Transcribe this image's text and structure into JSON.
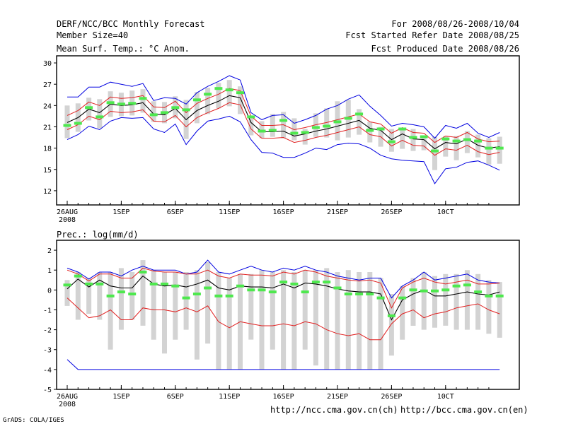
{
  "header": {
    "left": [
      "DERF/NCC/BCC Monthly Forecast",
      "Member Size=40",
      "Mean Surf. Temp.: °C Anom."
    ],
    "right": [
      "For 2008/08/26-2008/10/04",
      "Fcst Started Refer Date 2008/08/25",
      "Fcst Produced Date 2008/08/26"
    ]
  },
  "footer": {
    "url_left": "http://ncc.cma.gov.cn(ch)",
    "url_right": "http://bcc.cma.gov.cn(en)",
    "credit": "GrADS: COLA/IGES"
  },
  "colors": {
    "box": "#d3d3d3",
    "median": "#4ee84e",
    "band": "#e02020",
    "envelope": "#0000e0",
    "mean": "#000000",
    "frame": "#000000"
  },
  "chart_data": [
    {
      "type": "box-band",
      "title": "Mean Surf. Temp.: °C Anom.",
      "days": 40,
      "x_tick_labels": [
        "26AUG",
        "1SEP",
        "6SEP",
        "11SEP",
        "16SEP",
        "21SEP",
        "26SEP",
        "1OCT"
      ],
      "x_tick_labels_shown": [
        "26AUG",
        "1SEP",
        "6SEP",
        "11SEP",
        "16SEP",
        "21SEP",
        "26SEP",
        "10CT"
      ],
      "x_tick_days": [
        0,
        5,
        10,
        15,
        20,
        25,
        30,
        35
      ],
      "x_year": "2008",
      "ylim": [
        10,
        31
      ],
      "y_ticks": [
        12,
        15,
        18,
        21,
        24,
        27,
        30
      ],
      "y_tick_labels": [
        "12",
        "15",
        "18",
        "21",
        "24",
        "27",
        "30"
      ],
      "series": {
        "mean": [
          21.6,
          22.3,
          23.5,
          23.0,
          24.2,
          24.0,
          24.1,
          24.4,
          22.8,
          22.7,
          23.6,
          22.0,
          23.3,
          24.0,
          24.6,
          25.4,
          25.1,
          21.6,
          20.3,
          20.3,
          20.4,
          19.7,
          20.0,
          20.4,
          20.7,
          21.1,
          21.5,
          21.9,
          20.8,
          20.5,
          19.2,
          20.0,
          19.3,
          19.2,
          17.9,
          18.8,
          18.6,
          19.3,
          18.4,
          18.0,
          18.2
        ],
        "upper": [
          22.6,
          23.3,
          24.5,
          24.0,
          25.2,
          25.0,
          25.1,
          25.4,
          23.8,
          23.7,
          24.6,
          23.0,
          24.3,
          25.0,
          25.6,
          26.4,
          26.1,
          22.5,
          21.2,
          21.2,
          21.3,
          20.6,
          20.9,
          21.3,
          21.6,
          22.0,
          22.4,
          22.8,
          21.7,
          21.4,
          20.1,
          20.9,
          20.2,
          20.1,
          18.8,
          19.7,
          19.5,
          20.2,
          19.3,
          18.9,
          19.0
        ],
        "lower": [
          20.6,
          21.3,
          22.5,
          22.0,
          23.2,
          23.0,
          23.1,
          23.4,
          21.8,
          21.7,
          22.6,
          21.0,
          22.3,
          23.0,
          23.6,
          24.4,
          24.1,
          20.7,
          19.4,
          19.4,
          19.5,
          18.8,
          19.1,
          19.5,
          19.8,
          20.2,
          20.6,
          21.0,
          19.9,
          19.6,
          18.3,
          19.1,
          18.4,
          18.3,
          17.0,
          17.9,
          17.7,
          18.4,
          17.5,
          17.1,
          17.4
        ],
        "env_max": [
          25.2,
          25.2,
          26.6,
          26.6,
          27.3,
          27.0,
          26.7,
          27.1,
          24.7,
          25.1,
          25.0,
          24.2,
          25.8,
          26.7,
          27.4,
          28.2,
          27.6,
          23.0,
          22.0,
          22.6,
          22.7,
          21.5,
          22.0,
          22.6,
          23.5,
          24.0,
          24.9,
          25.5,
          23.9,
          22.6,
          21.1,
          21.5,
          21.3,
          21.0,
          19.4,
          21.2,
          20.8,
          21.5,
          20.1,
          19.5,
          20.2
        ],
        "env_min": [
          19.2,
          19.9,
          21.1,
          20.6,
          21.8,
          22.3,
          22.2,
          22.3,
          20.7,
          20.2,
          21.4,
          18.5,
          20.4,
          21.8,
          22.1,
          22.5,
          21.7,
          19.2,
          17.4,
          17.3,
          16.7,
          16.7,
          17.3,
          18.0,
          17.8,
          18.5,
          18.7,
          18.6,
          18.0,
          17.0,
          16.5,
          16.3,
          16.2,
          16.1,
          13.0,
          15.1,
          15.3,
          16.0,
          16.2,
          15.6,
          14.9
        ],
        "box_top": [
          24.0,
          24.3,
          25.1,
          24.9,
          26.0,
          25.8,
          26.1,
          26.3,
          24.6,
          24.5,
          25.3,
          24.8,
          25.9,
          26.5,
          27.2,
          27.6,
          26.7,
          22.3,
          21.8,
          22.8,
          23.1,
          22.2,
          20.7,
          22.9,
          23.6,
          24.6,
          24.8,
          23.5,
          21.7,
          21.0,
          20.7,
          20.7,
          20.7,
          19.8,
          19.6,
          19.7,
          19.7,
          20.4,
          19.9,
          19.4,
          19.6
        ],
        "box_bot": [
          19.4,
          20.3,
          21.9,
          20.8,
          22.4,
          22.5,
          22.6,
          23.0,
          21.7,
          21.5,
          22.2,
          19.3,
          21.5,
          22.8,
          23.6,
          23.9,
          22.8,
          19.8,
          19.4,
          19.6,
          19.4,
          19.1,
          18.5,
          19.6,
          19.5,
          19.1,
          19.5,
          19.9,
          18.8,
          18.2,
          17.5,
          17.9,
          17.6,
          17.7,
          14.9,
          16.8,
          16.3,
          17.3,
          16.7,
          15.7,
          15.8
        ],
        "median": [
          21.2,
          21.5,
          23.7,
          22.4,
          24.4,
          24.2,
          24.3,
          25.0,
          22.7,
          23.0,
          23.7,
          23.4,
          24.8,
          25.6,
          26.4,
          26.2,
          25.8,
          22.4,
          20.4,
          20.5,
          21.9,
          20.1,
          20.2,
          20.9,
          21.1,
          21.7,
          22.2,
          22.8,
          20.5,
          20.7,
          18.9,
          20.7,
          19.5,
          19.6,
          17.6,
          19.3,
          19.0,
          19.2,
          19.0,
          18.0,
          18.0
        ]
      }
    },
    {
      "type": "box-band",
      "title": "Prec.: log(mm/d)",
      "days": 40,
      "x_tick_labels": [
        "26AUG",
        "1SEP",
        "6SEP",
        "11SEP",
        "16SEP",
        "21SEP",
        "26SEP",
        "1OCT"
      ],
      "x_tick_labels_shown": [
        "26AUG",
        "1SEP",
        "6SEP",
        "11SEP",
        "16SEP",
        "21SEP",
        "26SEP",
        "10CT"
      ],
      "x_tick_days": [
        0,
        5,
        10,
        15,
        20,
        25,
        30,
        35
      ],
      "x_year": "2008",
      "ylim": [
        -5,
        2.5
      ],
      "y_ticks": [
        -5,
        -4,
        -3,
        -2,
        -1,
        0,
        1,
        2
      ],
      "y_tick_labels": [
        "-5",
        "-4",
        "-3",
        "-2",
        "-1",
        "0",
        "1",
        "2"
      ],
      "series": {
        "mean": [
          0.05,
          0.55,
          0.15,
          0.5,
          0.2,
          0.1,
          0.1,
          0.7,
          0.3,
          0.2,
          0.25,
          0.15,
          0.3,
          0.5,
          0.1,
          0.0,
          0.2,
          0.15,
          0.15,
          0.1,
          0.3,
          0.1,
          0.35,
          0.3,
          0.2,
          0.05,
          -0.05,
          -0.1,
          -0.1,
          -0.2,
          -1.5,
          -0.5,
          -0.2,
          0.0,
          -0.3,
          -0.3,
          -0.2,
          -0.1,
          -0.2,
          -0.25,
          -0.1
        ],
        "upper": [
          1.0,
          0.8,
          0.45,
          0.8,
          0.8,
          0.6,
          0.6,
          1.1,
          0.95,
          0.9,
          0.9,
          0.8,
          0.8,
          1.0,
          0.7,
          0.6,
          0.8,
          0.75,
          0.75,
          0.7,
          0.9,
          0.8,
          1.0,
          0.9,
          0.7,
          0.6,
          0.5,
          0.45,
          0.5,
          0.35,
          -0.9,
          0.1,
          0.4,
          0.6,
          0.4,
          0.3,
          0.4,
          0.5,
          0.3,
          0.3,
          0.35
        ],
        "lower": [
          -0.4,
          -0.9,
          -1.4,
          -1.3,
          -1.0,
          -1.5,
          -1.5,
          -0.9,
          -1.0,
          -1.0,
          -1.1,
          -0.9,
          -1.1,
          -0.8,
          -1.6,
          -1.9,
          -1.6,
          -1.7,
          -1.8,
          -1.8,
          -1.7,
          -1.8,
          -1.6,
          -1.7,
          -2.0,
          -2.2,
          -2.3,
          -2.2,
          -2.5,
          -2.5,
          -1.7,
          -1.2,
          -1.0,
          -1.4,
          -1.2,
          -1.1,
          -0.9,
          -0.8,
          -0.7,
          -1.0,
          -1.2
        ],
        "env_max": [
          1.1,
          0.9,
          0.55,
          0.9,
          0.9,
          0.7,
          1.0,
          1.2,
          1.0,
          1.0,
          1.0,
          0.8,
          0.9,
          1.5,
          0.9,
          0.8,
          1.0,
          1.2,
          1.0,
          0.9,
          1.1,
          1.0,
          1.2,
          1.0,
          0.9,
          0.7,
          0.6,
          0.5,
          0.6,
          0.6,
          -0.4,
          0.2,
          0.5,
          0.9,
          0.5,
          0.6,
          0.7,
          0.8,
          0.5,
          0.4,
          0.35
        ],
        "env_min": [
          -3.5,
          -4.0,
          -4.0,
          -4.0,
          -4.0,
          -4.0,
          -4.0,
          -4.0,
          -4.0,
          -4.0,
          -4.0,
          -4.0,
          -4.0,
          -4.0,
          -4.0,
          -4.0,
          -4.0,
          -4.0,
          -4.0,
          -4.0,
          -4.0,
          -4.0,
          -4.0,
          -4.0,
          -4.0,
          -4.0,
          -4.0,
          -4.0,
          -4.0,
          -4.0,
          -4.0,
          -4.0,
          -4.0,
          -4.0,
          -4.0,
          -4.0,
          -4.0,
          -4.0,
          -4.0,
          -4.0,
          -4.0
        ],
        "box_top": [
          0.5,
          0.9,
          0.6,
          0.9,
          0.9,
          1.1,
          0.9,
          1.5,
          1.0,
          0.9,
          0.9,
          0.9,
          1.0,
          1.4,
          0.9,
          0.6,
          0.8,
          0.8,
          1.0,
          0.9,
          1.0,
          0.9,
          1.0,
          1.0,
          1.1,
          0.9,
          1.0,
          0.9,
          0.9,
          0.6,
          -0.2,
          0.2,
          0.6,
          0.9,
          0.7,
          0.8,
          0.8,
          1.0,
          0.8,
          0.5,
          0.4
        ],
        "box_bot": [
          -0.8,
          -1.5,
          -1.2,
          -1.5,
          -3.0,
          -2.0,
          -1.5,
          -1.8,
          -2.5,
          -3.2,
          -2.5,
          -2.0,
          -3.5,
          -2.7,
          -4.0,
          -4.0,
          -4.0,
          -2.5,
          -4.0,
          -3.0,
          -4.0,
          -4.0,
          -3.0,
          -3.8,
          -4.0,
          -4.0,
          -4.0,
          -4.0,
          -4.0,
          -4.0,
          -3.3,
          -2.5,
          -1.8,
          -2.0,
          -1.9,
          -1.8,
          -2.0,
          -2.0,
          -2.0,
          -2.2,
          -2.4
        ],
        "median": [
          0.25,
          0.7,
          0.3,
          0.3,
          -0.3,
          -0.1,
          -0.2,
          0.9,
          0.3,
          0.3,
          0.2,
          -0.4,
          -0.2,
          0.1,
          -0.3,
          -0.3,
          0.2,
          0.0,
          0.0,
          -0.1,
          0.4,
          0.3,
          -0.1,
          0.4,
          0.4,
          0.1,
          -0.2,
          -0.2,
          -0.2,
          -0.4,
          -1.3,
          -0.4,
          0.0,
          -0.05,
          -0.05,
          0.0,
          0.2,
          0.25,
          -0.1,
          -0.3,
          -0.3
        ]
      }
    }
  ]
}
